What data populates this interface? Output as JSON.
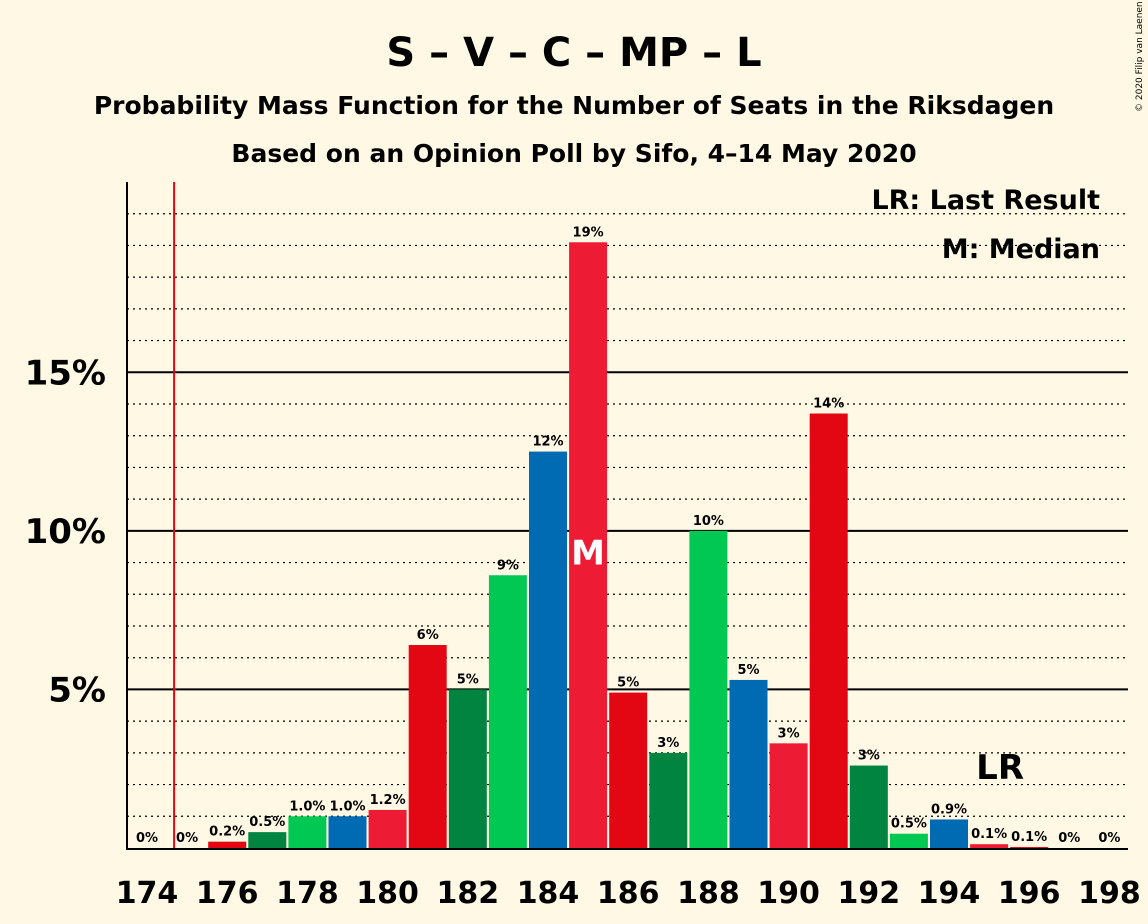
{
  "chart_data": {
    "type": "bar",
    "title": "S – V – C – MP – L",
    "subtitle1": "Probability Mass Function for the Number of Seats in the Riksdagen",
    "subtitle2": "Based on an Opinion Poll by Sifo, 4–14 May 2020",
    "copyright": "© 2020 Filip van Laenen",
    "legend": {
      "lr": "LR: Last Result",
      "m": "M: Median"
    },
    "markers": {
      "median_label": "M",
      "median_seat": 185,
      "lr_label": "LR",
      "lr_seat": 175
    },
    "ylim": [
      0,
      21
    ],
    "xlim": [
      174,
      198
    ],
    "y_ticks": [
      {
        "value": 5,
        "label": "5%"
      },
      {
        "value": 10,
        "label": "10%"
      },
      {
        "value": 15,
        "label": "15%"
      }
    ],
    "x_ticks": [
      {
        "value": 174,
        "label": "174"
      },
      {
        "value": 176,
        "label": "176"
      },
      {
        "value": 178,
        "label": "178"
      },
      {
        "value": 180,
        "label": "180"
      },
      {
        "value": 182,
        "label": "182"
      },
      {
        "value": 184,
        "label": "184"
      },
      {
        "value": 186,
        "label": "186"
      },
      {
        "value": 188,
        "label": "188"
      },
      {
        "value": 190,
        "label": "190"
      },
      {
        "value": 192,
        "label": "192"
      },
      {
        "value": 194,
        "label": "194"
      },
      {
        "value": 196,
        "label": "196"
      },
      {
        "value": 198,
        "label": "198"
      }
    ],
    "bars": [
      {
        "seat": 174,
        "value": 0.0,
        "label": "0%",
        "color": "#E30613"
      },
      {
        "seat": 175,
        "value": 0.0,
        "label": "0%",
        "color": "#E30613"
      },
      {
        "seat": 176,
        "value": 0.2,
        "label": "0.2%",
        "color": "#E30613"
      },
      {
        "seat": 177,
        "value": 0.5,
        "label": "0.5%",
        "color": "#00843F"
      },
      {
        "seat": 178,
        "value": 1.0,
        "label": "1.0%",
        "color": "#00C853"
      },
      {
        "seat": 179,
        "value": 1.0,
        "label": "1.0%",
        "color": "#006AB3"
      },
      {
        "seat": 180,
        "value": 1.2,
        "label": "1.2%",
        "color": "#ED1B34"
      },
      {
        "seat": 181,
        "value": 6.4,
        "label": "6%",
        "color": "#E30613"
      },
      {
        "seat": 182,
        "value": 5.0,
        "label": "5%",
        "color": "#00843F"
      },
      {
        "seat": 183,
        "value": 8.6,
        "label": "9%",
        "color": "#00C853"
      },
      {
        "seat": 184,
        "value": 12.5,
        "label": "12%",
        "color": "#006AB3"
      },
      {
        "seat": 185,
        "value": 19.1,
        "label": "19%",
        "color": "#ED1B34"
      },
      {
        "seat": 186,
        "value": 4.9,
        "label": "5%",
        "color": "#E30613"
      },
      {
        "seat": 187,
        "value": 3.0,
        "label": "3%",
        "color": "#00843F"
      },
      {
        "seat": 188,
        "value": 10.0,
        "label": "10%",
        "color": "#00C853"
      },
      {
        "seat": 189,
        "value": 5.3,
        "label": "5%",
        "color": "#006AB3"
      },
      {
        "seat": 190,
        "value": 3.3,
        "label": "3%",
        "color": "#ED1B34"
      },
      {
        "seat": 191,
        "value": 13.7,
        "label": "14%",
        "color": "#E30613"
      },
      {
        "seat": 192,
        "value": 2.6,
        "label": "3%",
        "color": "#00843F"
      },
      {
        "seat": 193,
        "value": 0.45,
        "label": "0.5%",
        "color": "#00C853"
      },
      {
        "seat": 194,
        "value": 0.9,
        "label": "0.9%",
        "color": "#006AB3"
      },
      {
        "seat": 195,
        "value": 0.12,
        "label": "0.1%",
        "color": "#ED1B34"
      },
      {
        "seat": 196,
        "value": 0.03,
        "label": "0.1%",
        "color": "#E30613"
      },
      {
        "seat": 197,
        "value": 0.0,
        "label": "0%",
        "color": "#00843F"
      },
      {
        "seat": 198,
        "value": 0.0,
        "label": "0%",
        "color": "#00C853"
      }
    ]
  }
}
